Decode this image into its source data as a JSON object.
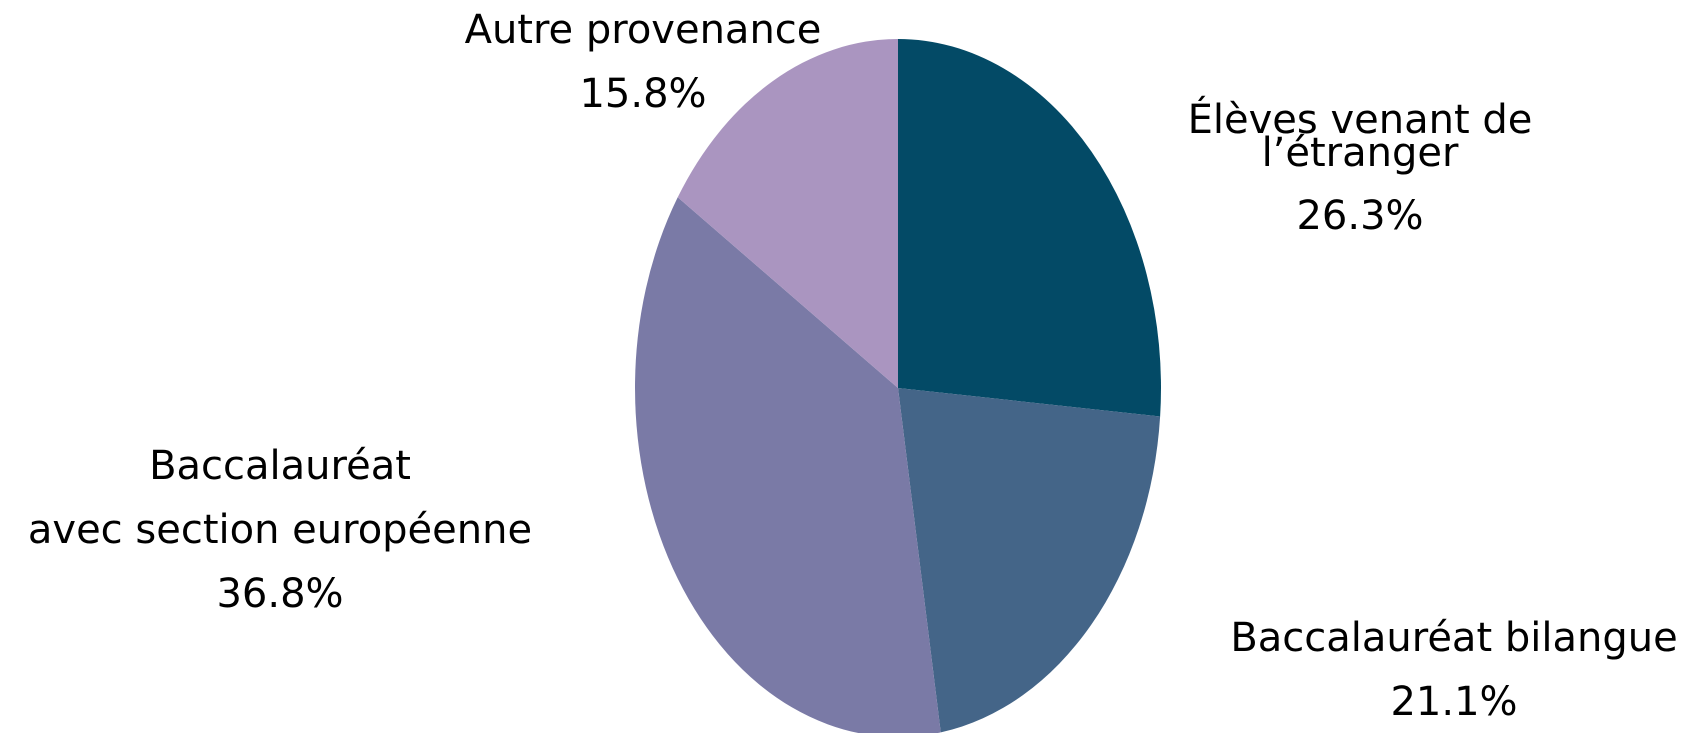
{
  "chart_data": {
    "type": "pie",
    "start_angle": "12 o'clock",
    "direction": "clockwise",
    "slices": [
      {
        "label_lines": [
          "Élèves venant de",
          "l’étranger"
        ],
        "value_text": "26.3%",
        "value": 26.3,
        "color": "#034a66"
      },
      {
        "label_lines": [
          "Baccalauréat bilangue"
        ],
        "value_text": "21.1%",
        "value": 21.1,
        "color": "#446588"
      },
      {
        "label_lines": [
          "Baccalauréat",
          "avec section européenne"
        ],
        "value_text": "36.8%",
        "value": 36.8,
        "color": "#7a7aa6"
      },
      {
        "label_lines": [
          "Autre provenance"
        ],
        "value_text": "15.8%",
        "value": 15.8,
        "color": "#aa95c0"
      }
    ]
  }
}
